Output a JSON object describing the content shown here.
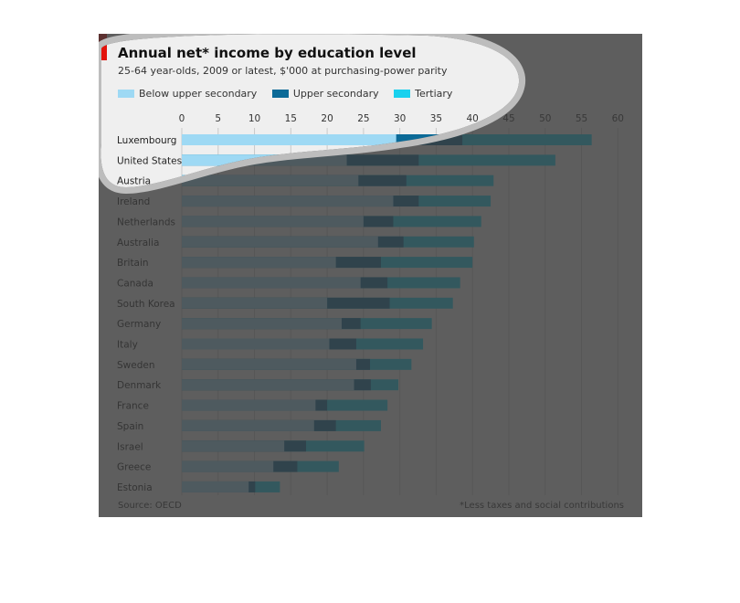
{
  "title": "Annual net* income by education level",
  "subtitle": "25-64 year-olds, 2009 or latest, $'000 at purchasing-power parity",
  "source": "Source: OECD",
  "footnote": "*Less taxes and social contributions",
  "colors": {
    "below_upper_secondary": "#9ed9f4",
    "upper_secondary": "#0b6a97",
    "tertiary": "#19d1ee",
    "overlay": "#3a3a3a"
  },
  "chart_data": {
    "type": "bar",
    "orientation": "horizontal",
    "title": "Annual net* income by education level",
    "subtitle": "25-64 year-olds, 2009 or latest, $'000 at purchasing-power parity",
    "legend_position": "top",
    "grid": true,
    "xlim": [
      0,
      60
    ],
    "xticks": [
      "0",
      "5",
      "10",
      "15",
      "20",
      "25",
      "30",
      "35",
      "40",
      "45",
      "50",
      "55",
      "60"
    ],
    "categories": [
      "Luxembourg",
      "United States",
      "Austria",
      "Ireland",
      "Netherlands",
      "Australia",
      "Britain",
      "Canada",
      "South Korea",
      "Germany",
      "Italy",
      "Sweden",
      "Denmark",
      "France",
      "Spain",
      "Israel",
      "Greece",
      "Estonia"
    ],
    "series": [
      {
        "name": "Below upper secondary",
        "values": [
          29.5,
          22.7,
          24.3,
          29.1,
          25.0,
          27.0,
          21.2,
          24.6,
          20.0,
          22.0,
          20.3,
          24.0,
          23.7,
          18.4,
          18.2,
          14.1,
          12.6,
          9.2
        ]
      },
      {
        "name": "Upper secondary",
        "values": [
          38.6,
          32.6,
          30.9,
          32.6,
          29.1,
          30.5,
          27.4,
          28.3,
          28.6,
          24.6,
          24.0,
          25.9,
          26.0,
          20.0,
          21.2,
          17.1,
          15.9,
          10.1
        ]
      },
      {
        "name": "Tertiary",
        "values": [
          56.4,
          51.4,
          42.9,
          42.5,
          41.2,
          40.2,
          40.0,
          38.3,
          37.3,
          34.4,
          33.2,
          31.6,
          29.8,
          28.3,
          27.4,
          25.1,
          21.6,
          13.5
        ]
      }
    ]
  }
}
